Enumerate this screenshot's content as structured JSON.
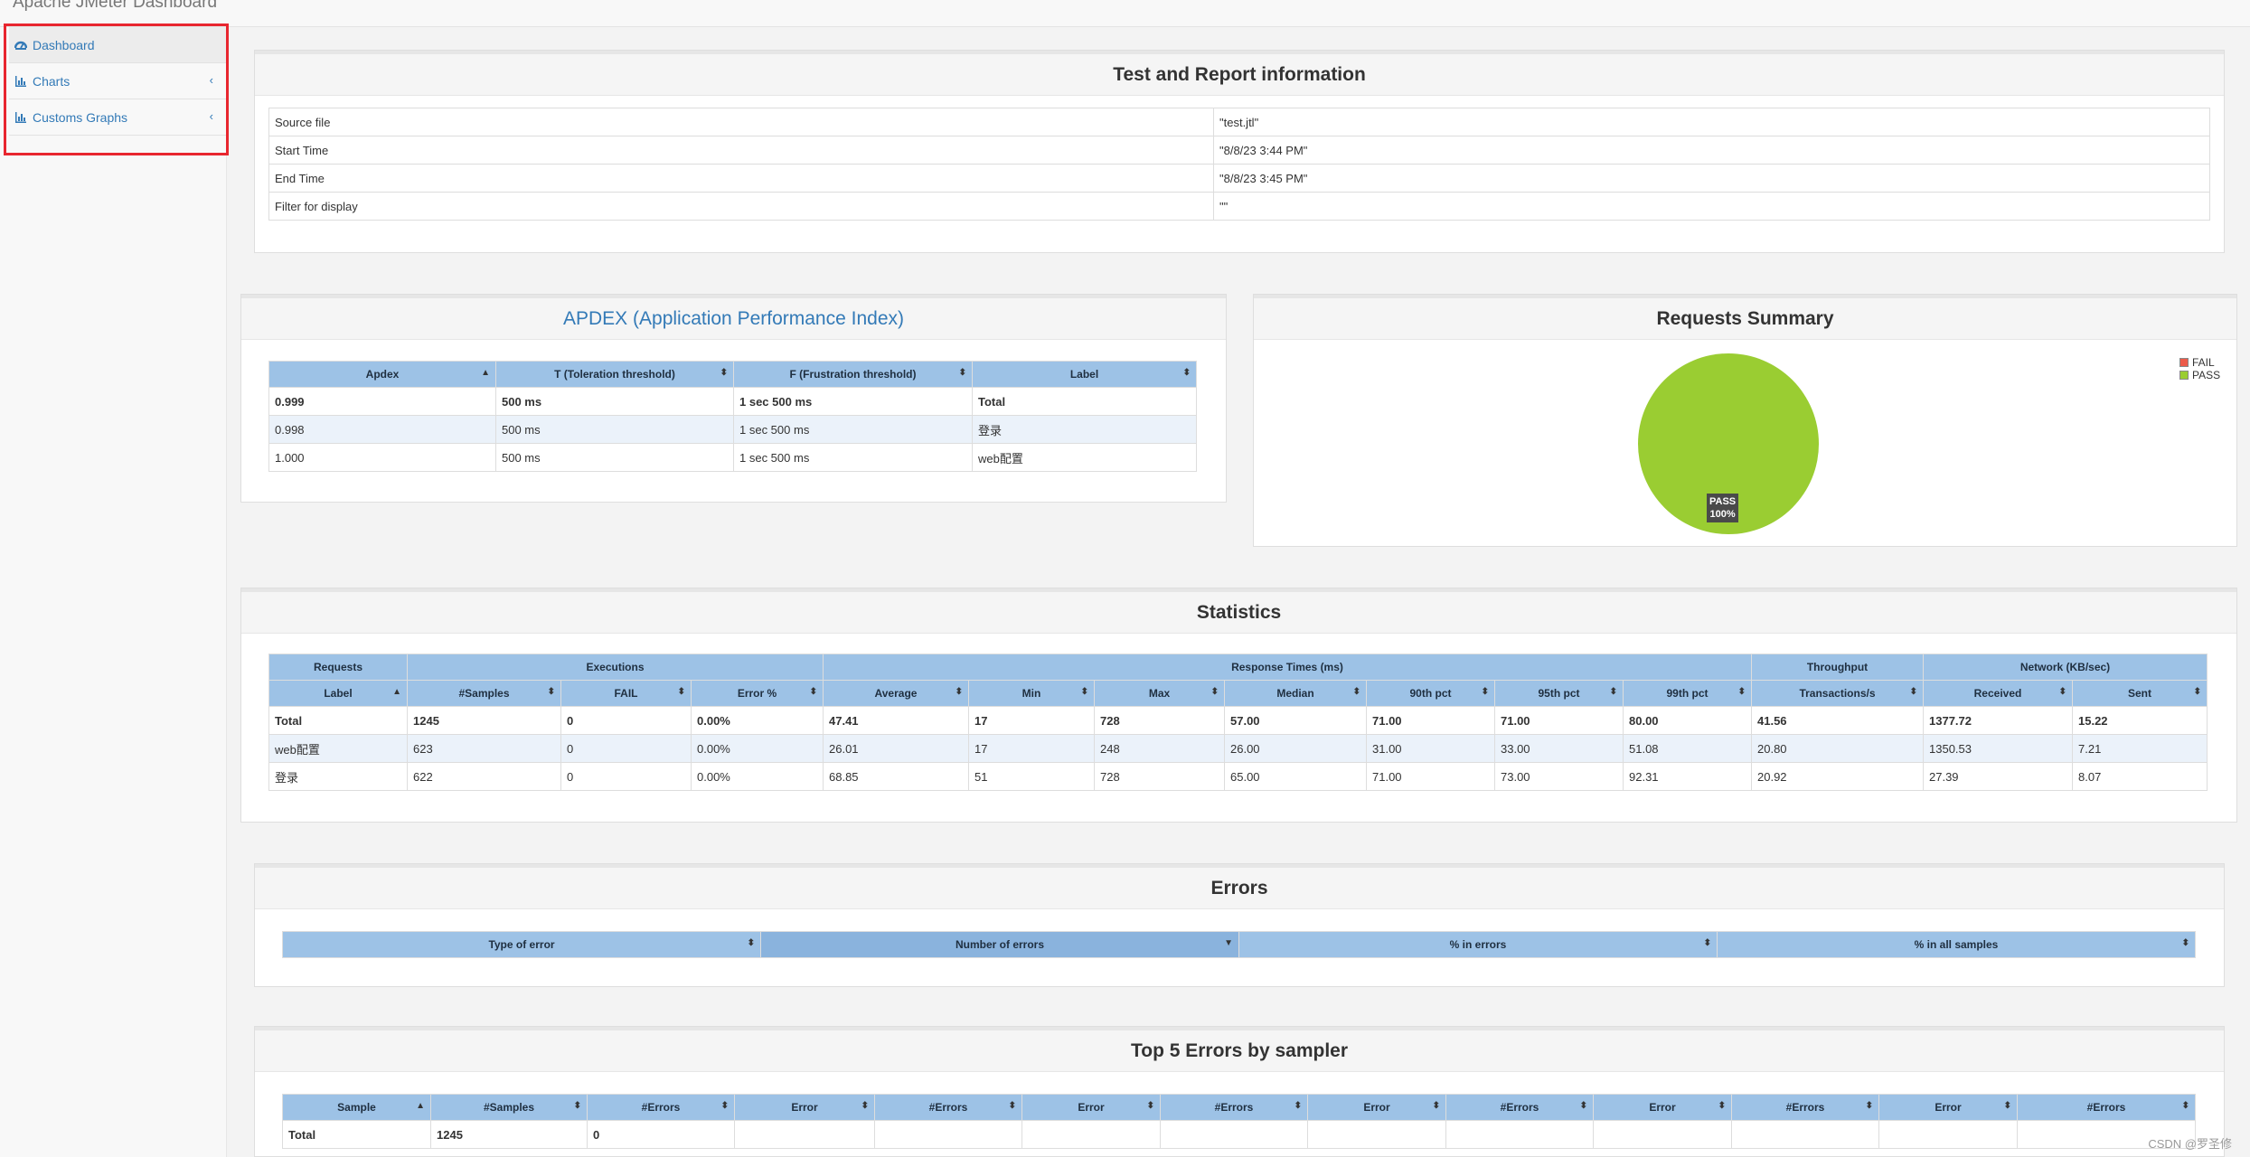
{
  "app": {
    "title": "Apache JMeter Dashboard"
  },
  "sidebar": {
    "items": [
      {
        "label": "Dashboard",
        "icon": "dashboard-icon",
        "active": true
      },
      {
        "label": "Charts",
        "icon": "bar-chart-icon",
        "chevron": "‹"
      },
      {
        "label": "Customs Graphs",
        "icon": "bar-chart-icon",
        "chevron": "‹"
      }
    ]
  },
  "test_info": {
    "title": "Test and Report information",
    "rows": [
      {
        "key": "Source file",
        "value": "\"test.jtl\""
      },
      {
        "key": "Start Time",
        "value": "\"8/8/23 3:44 PM\""
      },
      {
        "key": "End Time",
        "value": "\"8/8/23 3:45 PM\""
      },
      {
        "key": "Filter for display",
        "value": "\"\""
      }
    ]
  },
  "apdex": {
    "title": "APDEX (Application Performance Index)",
    "headers": [
      "Apdex",
      "T (Toleration threshold)",
      "F (Frustration threshold)",
      "Label"
    ],
    "rows": [
      [
        "0.999",
        "500 ms",
        "1 sec 500 ms",
        "Total"
      ],
      [
        "0.998",
        "500 ms",
        "1 sec 500 ms",
        "登录"
      ],
      [
        "1.000",
        "500 ms",
        "1 sec 500 ms",
        "web配置"
      ]
    ]
  },
  "requests_summary": {
    "title": "Requests Summary",
    "legend": [
      {
        "label": "FAIL",
        "color": "#ec5b4a"
      },
      {
        "label": "PASS",
        "color": "#9acd32"
      }
    ],
    "slice_label": "PASS",
    "slice_pct": "100%"
  },
  "chart_data": {
    "type": "pie",
    "title": "Requests Summary",
    "categories": [
      "FAIL",
      "PASS"
    ],
    "values": [
      0,
      100
    ],
    "colors": [
      "#ec5b4a",
      "#9acd32"
    ],
    "legend_position": "top-right"
  },
  "statistics": {
    "title": "Statistics",
    "groups": [
      "Requests",
      "Executions",
      "Response Times (ms)",
      "Throughput",
      "Network (KB/sec)"
    ],
    "headers": [
      "Label",
      "#Samples",
      "FAIL",
      "Error %",
      "Average",
      "Min",
      "Max",
      "Median",
      "90th pct",
      "95th pct",
      "99th pct",
      "Transactions/s",
      "Received",
      "Sent"
    ],
    "rows": [
      [
        "Total",
        "1245",
        "0",
        "0.00%",
        "47.41",
        "17",
        "728",
        "57.00",
        "71.00",
        "71.00",
        "80.00",
        "41.56",
        "1377.72",
        "15.22"
      ],
      [
        "web配置",
        "623",
        "0",
        "0.00%",
        "26.01",
        "17",
        "248",
        "26.00",
        "31.00",
        "33.00",
        "51.08",
        "20.80",
        "1350.53",
        "7.21"
      ],
      [
        "登录",
        "622",
        "0",
        "0.00%",
        "68.85",
        "51",
        "728",
        "65.00",
        "71.00",
        "73.00",
        "92.31",
        "20.92",
        "27.39",
        "8.07"
      ]
    ]
  },
  "errors": {
    "title": "Errors",
    "headers": [
      "Type of error",
      "Number of errors",
      "% in errors",
      "% in all samples"
    ]
  },
  "top5": {
    "title": "Top 5 Errors by sampler",
    "headers": [
      "Sample",
      "#Samples",
      "#Errors",
      "Error",
      "#Errors",
      "Error",
      "#Errors",
      "Error",
      "#Errors",
      "Error",
      "#Errors",
      "Error",
      "#Errors"
    ],
    "rows": [
      [
        "Total",
        "1245",
        "0",
        "",
        "",
        "",
        "",
        "",
        "",
        "",
        "",
        "",
        ""
      ]
    ]
  },
  "watermark": "CSDN @罗圣修"
}
